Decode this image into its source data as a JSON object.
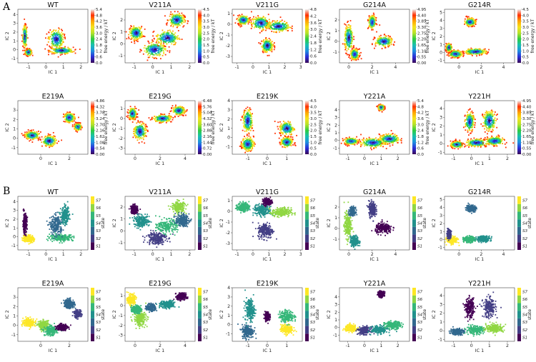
{
  "figure": {
    "panel_labels": [
      "A",
      "B"
    ],
    "ic1_label": "IC 1",
    "ic2_label": "IC 2",
    "energy_cbar_label": "free energy / kT",
    "state_cbar_label": "state",
    "energy_colors": [
      "#3b0a57",
      "#2b2bd6",
      "#1f8fe0",
      "#18c0b0",
      "#2ecc40",
      "#b6e22a",
      "#f5e31e",
      "#ffa500",
      "#ff3000",
      "#f0f0f0"
    ],
    "state_colors": [
      "#440154",
      "#433e85",
      "#31688e",
      "#21918c",
      "#35b779",
      "#90d743",
      "#fde725"
    ]
  },
  "chart_data": [
    {
      "panel": "A",
      "type": "heatmap",
      "title": "WT",
      "xlim": [
        -1.6,
        2.4
      ],
      "ylim": [
        -1.5,
        4.6
      ],
      "xticks": [
        -1,
        0,
        1,
        2
      ],
      "yticks": [
        -1,
        0,
        1,
        2,
        3,
        4
      ],
      "cbar_ticks": [
        "5.4",
        "4.8",
        "4.2",
        "3.6",
        "3.0",
        "2.4",
        "1.8",
        "1.2",
        "0.6",
        "0.0"
      ],
      "clusters": [
        [
          -1.0,
          -0.3,
          0.15,
          0.3
        ],
        [
          -1.2,
          1.5,
          0.1,
          1.0
        ],
        [
          0.9,
          -0.1,
          0.55,
          0.3
        ],
        [
          0.6,
          1.2,
          0.35,
          0.9
        ]
      ]
    },
    {
      "panel": "A",
      "type": "heatmap",
      "title": "V211A",
      "xlim": [
        -1.5,
        2.3
      ],
      "ylim": [
        -1.6,
        2.9
      ],
      "xticks": [
        -1,
        0,
        1,
        2
      ],
      "yticks": [
        -1,
        0,
        1,
        2
      ],
      "cbar_ticks": [
        "4.5",
        "4.0",
        "3.5",
        "3.0",
        "2.5",
        "2.0",
        "1.5",
        "1.0",
        "0.5",
        "0.0"
      ],
      "clusters": [
        [
          -0.9,
          0.9,
          0.3,
          0.45
        ],
        [
          0.1,
          -0.5,
          0.5,
          0.5
        ],
        [
          1.3,
          2.0,
          0.35,
          0.45
        ],
        [
          0.8,
          0.5,
          0.5,
          0.5
        ]
      ]
    },
    {
      "panel": "A",
      "type": "heatmap",
      "title": "V211G",
      "xlim": [
        -1.3,
        3.1
      ],
      "ylim": [
        -3.6,
        1.4
      ],
      "xticks": [
        -1,
        0,
        1,
        2,
        3
      ],
      "yticks": [
        -3,
        -2,
        -1,
        0,
        1
      ],
      "cbar_ticks": [
        "4.8",
        "4.2",
        "3.6",
        "3.0",
        "2.4",
        "1.8",
        "1.2",
        "0.6",
        "0.0"
      ],
      "clusters": [
        [
          -0.6,
          0.4,
          0.3,
          0.35
        ],
        [
          0.5,
          0.1,
          0.5,
          0.5
        ],
        [
          1.6,
          -0.2,
          0.6,
          0.4
        ],
        [
          0.9,
          -2.0,
          0.3,
          0.5
        ]
      ]
    },
    {
      "panel": "A",
      "type": "heatmap",
      "title": "G214A",
      "xlim": [
        -0.8,
        5.2
      ],
      "ylim": [
        -2.0,
        3.0
      ],
      "xticks": [
        0,
        2,
        4
      ],
      "yticks": [
        -1,
        0,
        1,
        2
      ],
      "cbar_ticks": [
        "4.95",
        "4.40",
        "3.85",
        "3.30",
        "2.75",
        "2.20",
        "1.65",
        "1.10",
        "0.55",
        "0.00"
      ],
      "clusters": [
        [
          0.0,
          0.3,
          0.3,
          1.0
        ],
        [
          0.5,
          -1.2,
          0.3,
          0.4
        ],
        [
          2.0,
          1.8,
          0.25,
          0.5
        ],
        [
          3.0,
          0.0,
          0.6,
          0.4
        ]
      ]
    },
    {
      "panel": "A",
      "type": "heatmap",
      "title": "G214R",
      "xlim": [
        -1.3,
        5.0
      ],
      "ylim": [
        -1.3,
        5.4
      ],
      "xticks": [
        0,
        2,
        4
      ],
      "yticks": [
        -1,
        0,
        1,
        2,
        3,
        4,
        5
      ],
      "cbar_ticks": [
        "4.5",
        "4.0",
        "3.5",
        "3.0",
        "2.5",
        "2.0",
        "1.5",
        "1.0",
        "0.5",
        "0.0"
      ],
      "clusters": [
        [
          -0.3,
          -0.2,
          0.5,
          0.35
        ],
        [
          1.5,
          0.1,
          0.8,
          0.3
        ],
        [
          1.0,
          3.8,
          0.4,
          0.4
        ],
        [
          -0.9,
          0.6,
          0.2,
          0.4
        ]
      ]
    },
    {
      "panel": "A",
      "type": "heatmap",
      "title": "E219A",
      "xlim": [
        -1.6,
        3.3
      ],
      "ylim": [
        -1.7,
        4.0
      ],
      "xticks": [
        0,
        2
      ],
      "yticks": [
        -1,
        0,
        1,
        2,
        3
      ],
      "cbar_ticks": [
        "4.86",
        "4.32",
        "3.78",
        "3.24",
        "2.70",
        "2.16",
        "1.62",
        "1.08",
        "0.54",
        "0.00"
      ],
      "clusters": [
        [
          -0.6,
          0.3,
          0.4,
          0.35
        ],
        [
          0.6,
          -0.3,
          0.4,
          0.45
        ],
        [
          2.0,
          2.2,
          0.3,
          0.4
        ],
        [
          2.6,
          1.2,
          0.2,
          0.3
        ]
      ]
    },
    {
      "panel": "A",
      "type": "heatmap",
      "title": "E219G",
      "xlim": [
        -0.8,
        4.8
      ],
      "ylim": [
        -3.6,
        1.8
      ],
      "xticks": [
        0,
        2,
        4
      ],
      "yticks": [
        -3,
        -2,
        -1,
        0,
        1
      ],
      "cbar_ticks": [
        "6.48",
        "5.76",
        "5.04",
        "4.32",
        "3.60",
        "2.88",
        "2.16",
        "1.44",
        "0.72",
        "0.00"
      ],
      "clusters": [
        [
          -0.2,
          0.5,
          0.25,
          0.5
        ],
        [
          0.4,
          -1.3,
          0.4,
          0.7
        ],
        [
          2.2,
          0.0,
          0.6,
          0.3
        ],
        [
          3.5,
          0.8,
          0.4,
          0.35
        ]
      ]
    },
    {
      "panel": "A",
      "type": "heatmap",
      "title": "E219K",
      "xlim": [
        -1.8,
        1.8
      ],
      "ylim": [
        -1.8,
        4.0
      ],
      "xticks": [
        -1,
        0,
        1
      ],
      "yticks": [
        -1,
        0,
        1,
        2,
        3,
        4
      ],
      "cbar_ticks": [
        "4.5",
        "4.0",
        "3.5",
        "3.0",
        "2.5",
        "2.0",
        "1.5",
        "1.0",
        "0.5",
        "0.0"
      ],
      "clusters": [
        [
          -1.0,
          -0.7,
          0.25,
          0.6
        ],
        [
          -1.0,
          1.8,
          0.2,
          1.0
        ],
        [
          1.0,
          -0.5,
          0.25,
          0.45
        ],
        [
          1.0,
          1.0,
          0.3,
          0.6
        ]
      ]
    },
    {
      "panel": "A",
      "type": "heatmap",
      "title": "Y221A",
      "xlim": [
        -1.5,
        2.7
      ],
      "ylim": [
        -1.8,
        5.2
      ],
      "xticks": [
        -1,
        0,
        1,
        2
      ],
      "yticks": [
        -1,
        0,
        1,
        2,
        3,
        4
      ],
      "cbar_ticks": [
        "5.4",
        "4.8",
        "4.2",
        "3.6",
        "3.0",
        "2.4",
        "1.8",
        "1.2",
        "0.6",
        "0.0"
      ],
      "clusters": [
        [
          -0.8,
          -0.1,
          0.35,
          0.35
        ],
        [
          0.5,
          -0.3,
          0.6,
          0.5
        ],
        [
          1.5,
          0.2,
          0.5,
          0.5
        ],
        [
          1.0,
          4.3,
          0.15,
          0.3
        ]
      ]
    },
    {
      "panel": "A",
      "type": "heatmap",
      "title": "Y221H",
      "xlim": [
        -1.5,
        2.4
      ],
      "ylim": [
        -1.2,
        4.9
      ],
      "xticks": [
        -1,
        0,
        1,
        2
      ],
      "yticks": [
        -1,
        0,
        1,
        2,
        3,
        4
      ],
      "cbar_ticks": [
        "4.95",
        "4.40",
        "3.85",
        "3.30",
        "2.75",
        "2.20",
        "1.65",
        "1.10",
        "0.55",
        "0.00"
      ],
      "clusters": [
        [
          -0.8,
          -0.1,
          0.3,
          0.3
        ],
        [
          0.3,
          0.1,
          0.5,
          0.35
        ],
        [
          1.3,
          0.3,
          0.4,
          0.4
        ],
        [
          -0.1,
          2.5,
          0.2,
          0.9
        ],
        [
          1.0,
          2.6,
          0.3,
          0.9
        ]
      ]
    },
    {
      "panel": "B",
      "type": "scatter",
      "title": "WT",
      "xlim": [
        -1.6,
        2.4
      ],
      "ylim": [
        -1.5,
        4.6
      ],
      "xticks": [
        -1,
        0,
        1,
        2
      ],
      "yticks": [
        -1,
        0,
        1,
        2,
        3,
        4
      ],
      "states": 7,
      "state_labels": [
        "S1",
        "S2",
        "S3",
        "S4",
        "S5",
        "S6",
        "S7"
      ],
      "clusters": [
        [
          -1.0,
          -0.2,
          0.25,
          0.35,
          6
        ],
        [
          -1.2,
          1.5,
          0.1,
          0.9,
          0
        ],
        [
          0.9,
          -0.1,
          0.55,
          0.3,
          4
        ],
        [
          0.6,
          1.3,
          0.3,
          0.9,
          2
        ],
        [
          1.1,
          2.4,
          0.2,
          0.8,
          3
        ]
      ]
    },
    {
      "panel": "B",
      "type": "scatter",
      "title": "V211A",
      "xlim": [
        -1.5,
        2.3
      ],
      "ylim": [
        -1.6,
        2.9
      ],
      "xticks": [
        -1,
        0,
        1,
        2
      ],
      "yticks": [
        -1,
        0,
        1,
        2
      ],
      "states": 7,
      "state_labels": [
        "S1",
        "S2",
        "S3",
        "S4",
        "S5",
        "S6",
        "S7"
      ],
      "clusters": [
        [
          -1.0,
          1.8,
          0.15,
          0.3,
          0
        ],
        [
          -0.6,
          0.8,
          0.35,
          0.4,
          3
        ],
        [
          0.2,
          -0.6,
          0.45,
          0.45,
          1
        ],
        [
          0.8,
          0.4,
          0.45,
          0.45,
          4
        ],
        [
          1.4,
          2.0,
          0.3,
          0.4,
          5
        ],
        [
          1.6,
          0.9,
          0.3,
          0.4,
          2
        ]
      ]
    },
    {
      "panel": "B",
      "type": "scatter",
      "title": "V211G",
      "xlim": [
        -1.3,
        3.1
      ],
      "ylim": [
        -3.6,
        1.4
      ],
      "xticks": [
        -1,
        0,
        1,
        2,
        3
      ],
      "yticks": [
        -3,
        -2,
        -1,
        0,
        1
      ],
      "states": 7,
      "state_labels": [
        "S1",
        "S2",
        "S3",
        "S4",
        "S5",
        "S6",
        "S7"
      ],
      "clusters": [
        [
          -0.6,
          0.4,
          0.3,
          0.35,
          4
        ],
        [
          0.6,
          0.1,
          0.45,
          0.45,
          3
        ],
        [
          1.8,
          -0.1,
          0.5,
          0.35,
          5
        ],
        [
          0.8,
          -1.8,
          0.4,
          0.6,
          1
        ],
        [
          0.9,
          0.9,
          0.2,
          0.25,
          0
        ]
      ]
    },
    {
      "panel": "B",
      "type": "scatter",
      "title": "G214A",
      "xlim": [
        -0.8,
        5.2
      ],
      "ylim": [
        -2.0,
        3.0
      ],
      "xticks": [
        0,
        2,
        4
      ],
      "yticks": [
        -1,
        0,
        1,
        2
      ],
      "states": 7,
      "state_labels": [
        "S1",
        "S2",
        "S3",
        "S4",
        "S5",
        "S6",
        "S7"
      ],
      "clusters": [
        [
          -0.1,
          0.3,
          0.25,
          1.0,
          5
        ],
        [
          0.5,
          -1.2,
          0.3,
          0.4,
          3
        ],
        [
          2.0,
          1.8,
          0.25,
          0.6,
          1
        ],
        [
          3.0,
          0.0,
          0.6,
          0.4,
          0
        ],
        [
          0.3,
          1.6,
          0.2,
          0.3,
          2
        ]
      ]
    },
    {
      "panel": "B",
      "type": "scatter",
      "title": "G214R",
      "xlim": [
        -1.3,
        5.0
      ],
      "ylim": [
        -1.3,
        5.4
      ],
      "xticks": [
        0,
        2,
        4
      ],
      "yticks": [
        -1,
        0,
        1,
        2,
        3,
        4,
        5
      ],
      "states": 7,
      "state_labels": [
        "S1",
        "S2",
        "S3",
        "S4",
        "S5",
        "S6",
        "S7"
      ],
      "clusters": [
        [
          -0.6,
          -0.1,
          0.4,
          0.35,
          6
        ],
        [
          0.9,
          0.0,
          0.4,
          0.3,
          4
        ],
        [
          2.2,
          0.1,
          0.5,
          0.3,
          3
        ],
        [
          1.1,
          3.9,
          0.35,
          0.35,
          2
        ],
        [
          -0.9,
          0.7,
          0.15,
          0.4,
          1
        ]
      ]
    },
    {
      "panel": "B",
      "type": "scatter",
      "title": "E219A",
      "xlim": [
        -1.6,
        3.3
      ],
      "ylim": [
        -1.7,
        4.0
      ],
      "xticks": [
        0,
        2
      ],
      "yticks": [
        -1,
        0,
        1,
        2,
        3
      ],
      "states": 7,
      "state_labels": [
        "S1",
        "S2",
        "S3",
        "S4",
        "S5",
        "S6",
        "S7"
      ],
      "clusters": [
        [
          -0.8,
          0.3,
          0.35,
          0.35,
          6
        ],
        [
          0.2,
          0.0,
          0.3,
          0.4,
          5
        ],
        [
          0.7,
          -0.6,
          0.35,
          0.4,
          4
        ],
        [
          2.0,
          2.3,
          0.3,
          0.4,
          2
        ],
        [
          2.6,
          1.2,
          0.2,
          0.3,
          1
        ],
        [
          1.5,
          -0.2,
          0.3,
          0.3,
          0
        ]
      ]
    },
    {
      "panel": "B",
      "type": "scatter",
      "title": "E219G",
      "xlim": [
        -0.8,
        4.8
      ],
      "ylim": [
        -3.6,
        1.8
      ],
      "xticks": [
        0,
        2,
        4
      ],
      "yticks": [
        -3,
        -2,
        -1,
        0,
        1
      ],
      "states": 7,
      "state_labels": [
        "S1",
        "S2",
        "S3",
        "S4",
        "S5",
        "S6",
        "S7"
      ],
      "clusters": [
        [
          -0.3,
          0.6,
          0.25,
          0.4,
          6
        ],
        [
          0.4,
          -1.3,
          0.4,
          0.6,
          5
        ],
        [
          0.1,
          -0.4,
          0.3,
          0.3,
          4
        ],
        [
          1.3,
          -0.2,
          0.3,
          0.3,
          2
        ],
        [
          2.6,
          0.1,
          0.5,
          0.3,
          3
        ],
        [
          3.7,
          0.9,
          0.3,
          0.3,
          0
        ]
      ]
    },
    {
      "panel": "B",
      "type": "scatter",
      "title": "E219K",
      "xlim": [
        -1.8,
        1.8
      ],
      "ylim": [
        -1.8,
        4.0
      ],
      "xticks": [
        -1,
        0,
        1
      ],
      "yticks": [
        -1,
        0,
        1,
        2,
        3,
        4
      ],
      "states": 7,
      "state_labels": [
        "S1",
        "S2",
        "S3",
        "S4",
        "S5",
        "S6",
        "S7"
      ],
      "clusters": [
        [
          -1.0,
          -0.7,
          0.25,
          0.6,
          2
        ],
        [
          -0.9,
          1.6,
          0.2,
          1.0,
          3
        ],
        [
          1.0,
          -0.5,
          0.25,
          0.4,
          6
        ],
        [
          1.0,
          0.9,
          0.3,
          0.5,
          4
        ],
        [
          0.0,
          0.9,
          0.1,
          0.4,
          0
        ]
      ]
    },
    {
      "panel": "B",
      "type": "scatter",
      "title": "Y221A",
      "xlim": [
        -1.5,
        2.7
      ],
      "ylim": [
        -1.8,
        5.2
      ],
      "xticks": [
        -1,
        0,
        1,
        2
      ],
      "yticks": [
        -1,
        0,
        1,
        2,
        3,
        4
      ],
      "states": 7,
      "state_labels": [
        "S1",
        "S2",
        "S3",
        "S4",
        "S5",
        "S6",
        "S7"
      ],
      "clusters": [
        [
          -0.8,
          -0.1,
          0.3,
          0.35,
          6
        ],
        [
          0.0,
          -0.4,
          0.3,
          0.4,
          1
        ],
        [
          0.9,
          -0.3,
          0.4,
          0.4,
          3
        ],
        [
          1.7,
          0.3,
          0.4,
          0.4,
          4
        ],
        [
          1.0,
          4.4,
          0.15,
          0.3,
          0
        ]
      ]
    },
    {
      "panel": "B",
      "type": "scatter",
      "title": "Y221H",
      "xlim": [
        -1.5,
        2.4
      ],
      "ylim": [
        -1.2,
        4.9
      ],
      "xticks": [
        -1,
        0,
        1,
        2
      ],
      "yticks": [
        -1,
        0,
        1,
        2,
        3,
        4
      ],
      "states": 7,
      "state_labels": [
        "S1",
        "S2",
        "S3",
        "S4",
        "S5",
        "S6",
        "S7"
      ],
      "clusters": [
        [
          -0.8,
          -0.1,
          0.3,
          0.3,
          2
        ],
        [
          0.2,
          0.1,
          0.4,
          0.35,
          4
        ],
        [
          1.3,
          0.3,
          0.4,
          0.4,
          5
        ],
        [
          -0.1,
          2.6,
          0.2,
          0.9,
          0
        ],
        [
          1.0,
          2.6,
          0.3,
          0.9,
          1
        ]
      ]
    }
  ]
}
